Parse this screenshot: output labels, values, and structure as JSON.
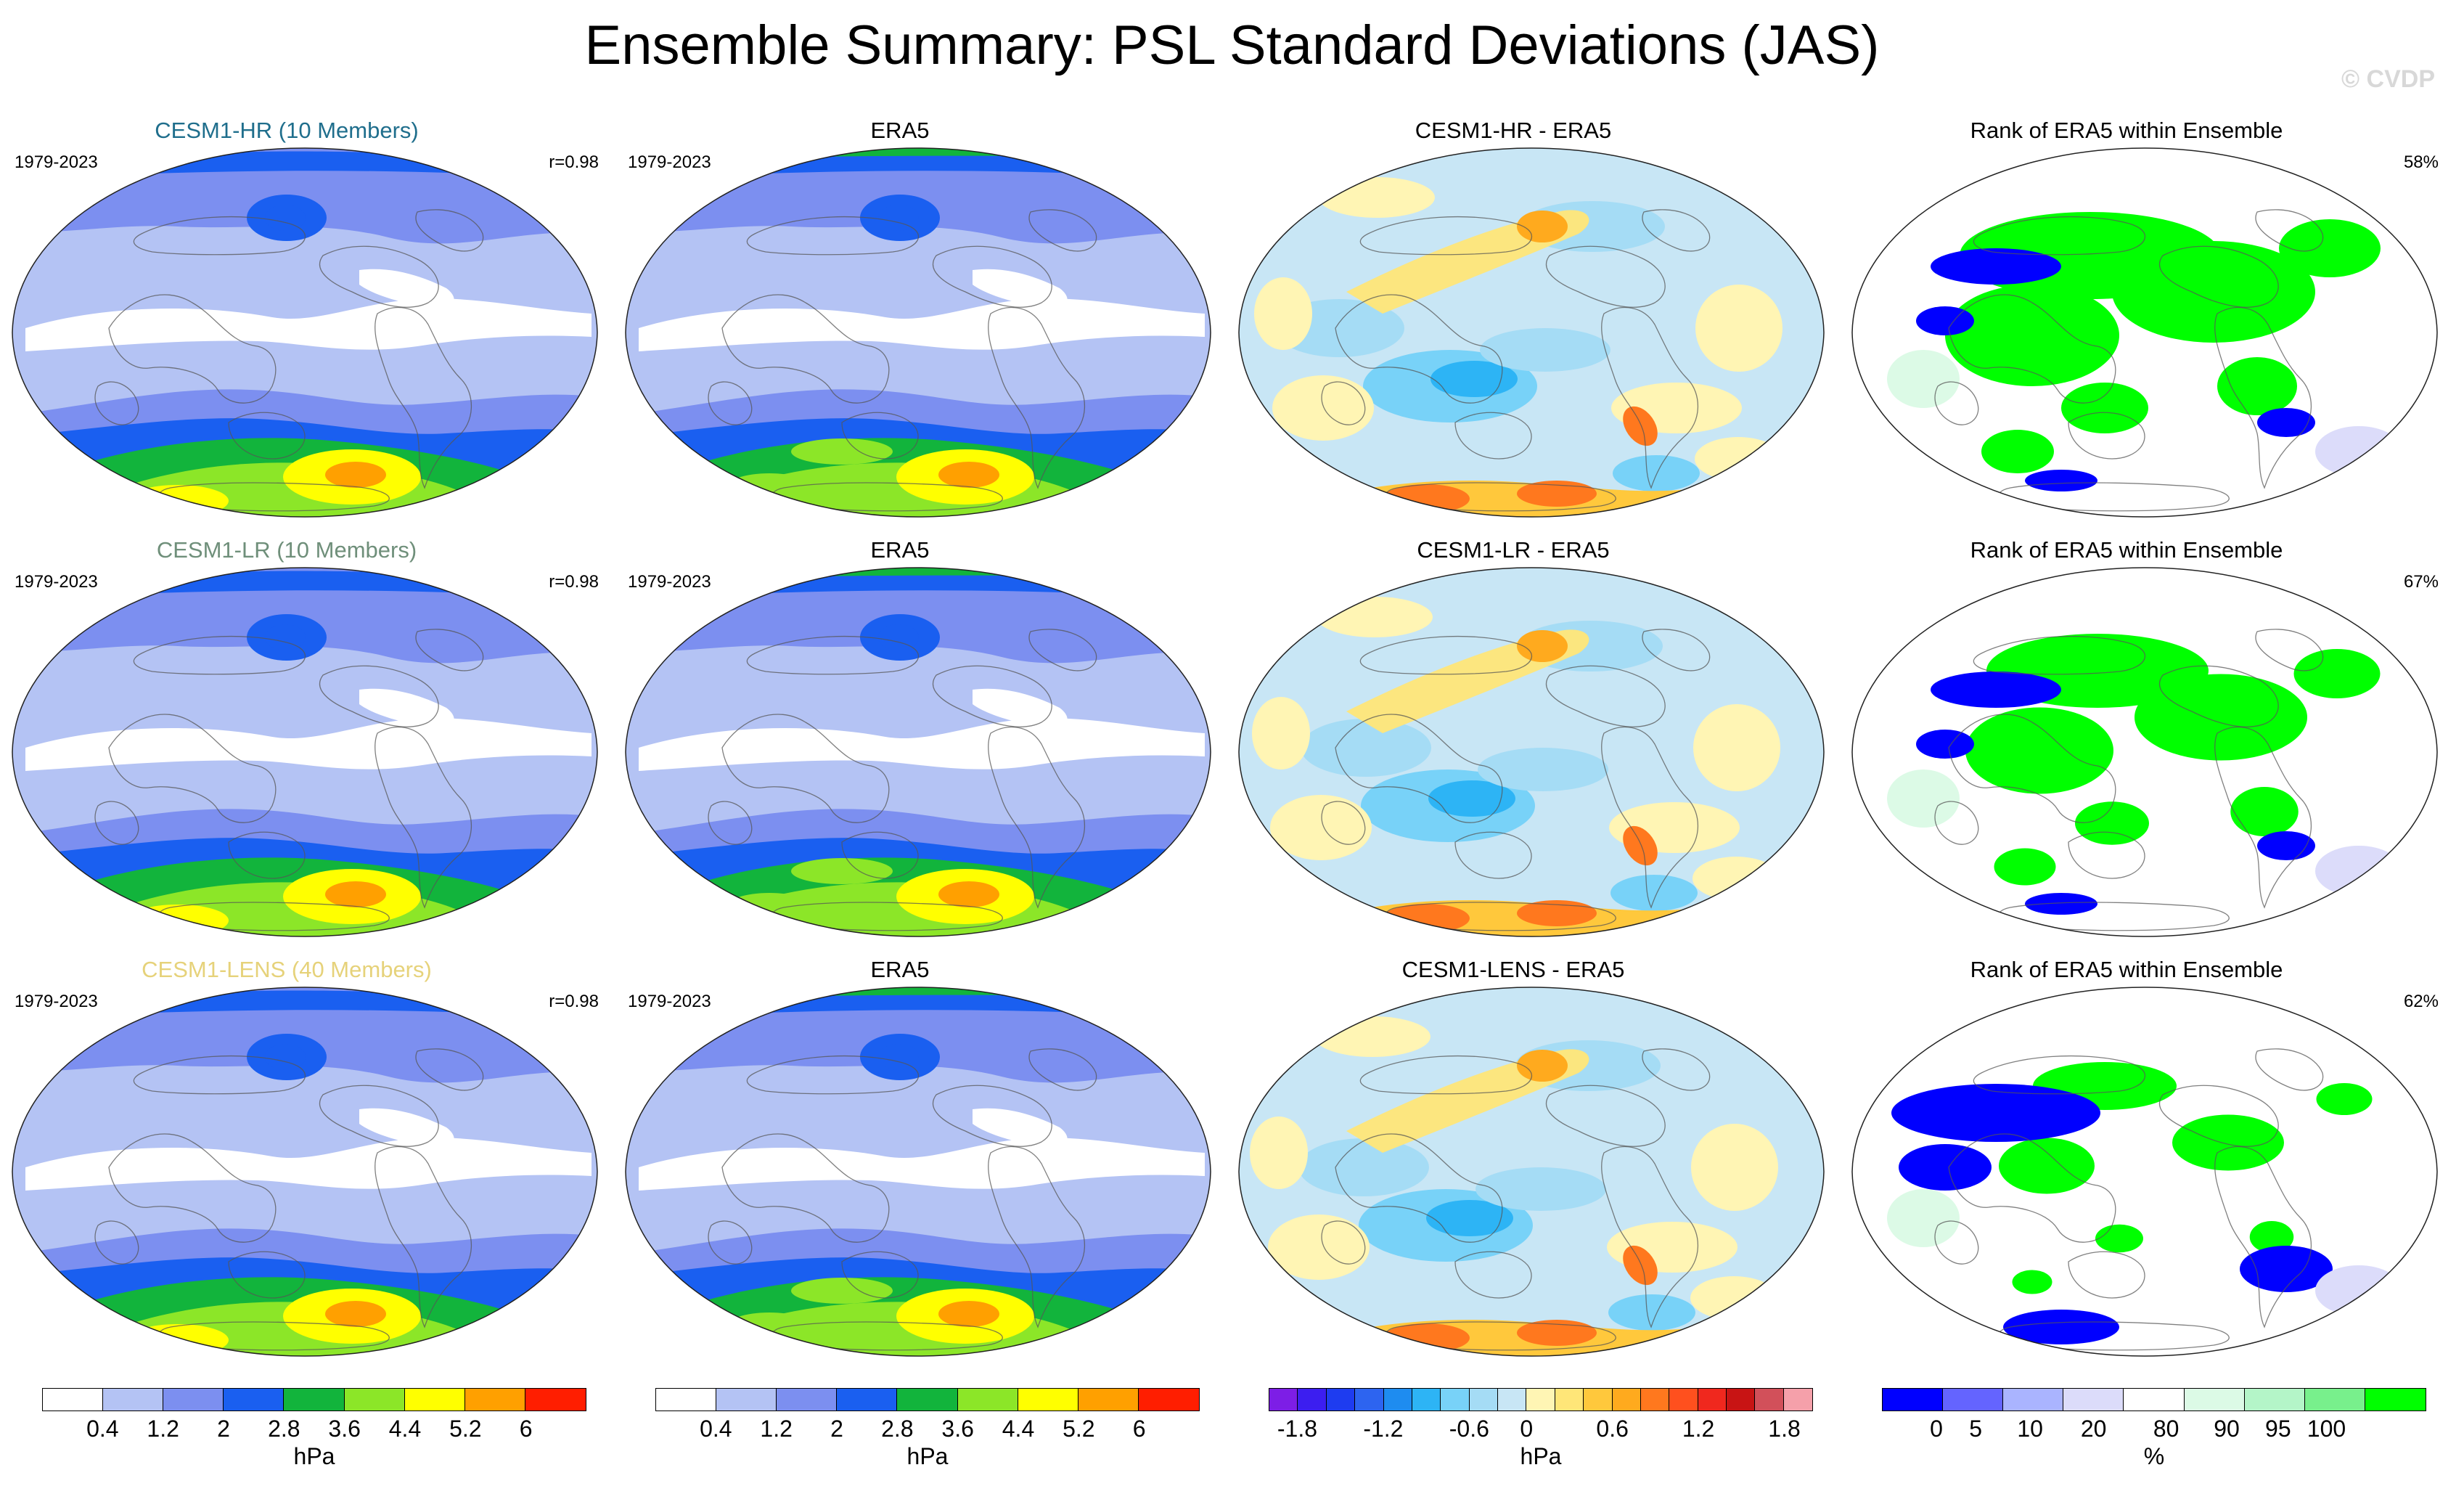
{
  "figure": {
    "title": "Ensemble Summary: PSL Standard Deviations (JAS)",
    "watermark": "© CVDP"
  },
  "rows": [
    {
      "model": {
        "title": "CESM1-HR (10 Members)",
        "title_color": "#1f6e8c",
        "years": "1979-2023",
        "corr": "r=0.98"
      },
      "obs": {
        "title": "ERA5",
        "years": "1979-2023"
      },
      "diff": {
        "title": "CESM1-HR - ERA5"
      },
      "rank": {
        "title": "Rank of ERA5 within Ensemble",
        "pct": "58%"
      }
    },
    {
      "model": {
        "title": "CESM1-LR (10 Members)",
        "title_color": "#6f8f7a",
        "years": "1979-2023",
        "corr": "r=0.98"
      },
      "obs": {
        "title": "ERA5",
        "years": "1979-2023"
      },
      "diff": {
        "title": "CESM1-LR - ERA5"
      },
      "rank": {
        "title": "Rank of ERA5 within Ensemble",
        "pct": "67%"
      }
    },
    {
      "model": {
        "title": "CESM1-LENS (40 Members)",
        "title_color": "#e6d27a",
        "years": "1979-2023",
        "corr": "r=0.98"
      },
      "obs": {
        "title": "ERA5",
        "years": "1979-2023"
      },
      "diff": {
        "title": "CESM1-LENS - ERA5"
      },
      "rank": {
        "title": "Rank of ERA5 within Ensemble",
        "pct": "62%"
      }
    }
  ],
  "colorbars": {
    "stddev": {
      "unit": "hPa",
      "ticks": [
        "0.4",
        "1.2",
        "2",
        "2.8",
        "3.6",
        "4.4",
        "5.2",
        "6"
      ],
      "colors": [
        "#ffffff",
        "#b4c3f4",
        "#7c8ff0",
        "#1a5ff0",
        "#12b43c",
        "#8ce628",
        "#ffff00",
        "#ffa000",
        "#ff1e00"
      ]
    },
    "diff": {
      "unit": "hPa",
      "ticks": [
        "-1.8",
        "-1.2",
        "-0.6",
        "0",
        "0.6",
        "1.2",
        "1.8"
      ],
      "colors": [
        "#7d1ee6",
        "#3c1ef0",
        "#1e3cf0",
        "#2d64f0",
        "#1e8cf0",
        "#2db4f5",
        "#78d2f8",
        "#a5dcf5",
        "#c8e6f5",
        "#fff5b4",
        "#ffe678",
        "#ffc83c",
        "#ffaa1e",
        "#ff781e",
        "#ff501e",
        "#f0281e",
        "#c81414",
        "#d2505a",
        "#f5a0aa"
      ]
    },
    "rank": {
      "unit": "%",
      "ticks": [
        "0",
        "5",
        "10",
        "20",
        "80",
        "90",
        "95",
        "100"
      ],
      "colors": [
        "#0000ff",
        "#6464ff",
        "#aab4ff",
        "#dcdcfa",
        "#ffffff",
        "#dcfae6",
        "#b4f5c8",
        "#78f08c",
        "#00ff00"
      ]
    }
  }
}
